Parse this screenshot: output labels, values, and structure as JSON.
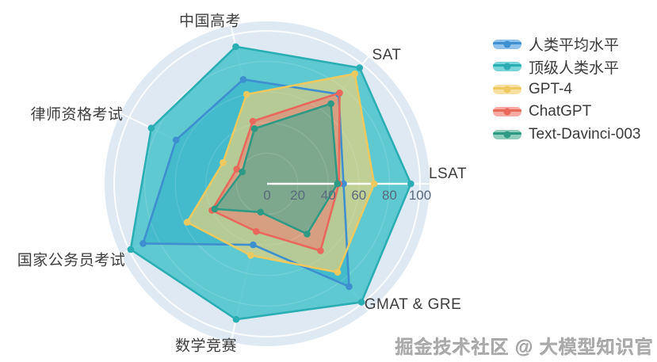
{
  "chart_data": {
    "type": "radar",
    "title": "",
    "categories": [
      "中国高考",
      "SAT",
      "LSAT",
      "GMAT & GRE",
      "数学竞赛",
      "国家公务员考试",
      "律师资格考试"
    ],
    "axis_range": [
      0,
      100
    ],
    "axis_ticks": [
      "0",
      "20",
      "40",
      "60",
      "80",
      "100"
    ],
    "grid": "circular white rings on light-blue disc, white spokes",
    "legend_position": "right",
    "background_disc_color": "#dfe9f3",
    "series": [
      {
        "name": "人类平均水平",
        "color": "#3d8fd0",
        "fill": "#3f97d6",
        "fill_opacity": 0.85,
        "legend_pill": "#8fc1e9",
        "values": [
          70,
          75,
          50,
          86,
          41,
          90,
          66
        ]
      },
      {
        "name": "顶级人类水平",
        "color": "#2aaeb4",
        "fill": "#3fc0c8",
        "fill_opacity": 0.8,
        "legend_pill": "#79d5d8",
        "values": [
          92,
          97,
          94,
          99,
          91,
          99,
          84
        ]
      },
      {
        "name": "GPT-4",
        "color": "#edc95f",
        "fill": "#f2d277",
        "fill_opacity": 0.65,
        "legend_pill": "#f7e0a1",
        "values": [
          60,
          92,
          70,
          74,
          48,
          58,
          32
        ]
      },
      {
        "name": "ChatGPT",
        "color": "#e8685c",
        "fill": "#ef8276",
        "fill_opacity": 0.6,
        "legend_pill": "#f5a9a0",
        "values": [
          42,
          76,
          47,
          56,
          32,
          40,
          22
        ]
      },
      {
        "name": "Text-Davinci-003",
        "color": "#2f9a84",
        "fill": "#57ad93",
        "fill_opacity": 0.7,
        "legend_pill": "#8fccba",
        "values": [
          37,
          67,
          46,
          42,
          19,
          38,
          18
        ]
      }
    ]
  },
  "watermark": "掘金技术社区 @ 大模型知识官"
}
